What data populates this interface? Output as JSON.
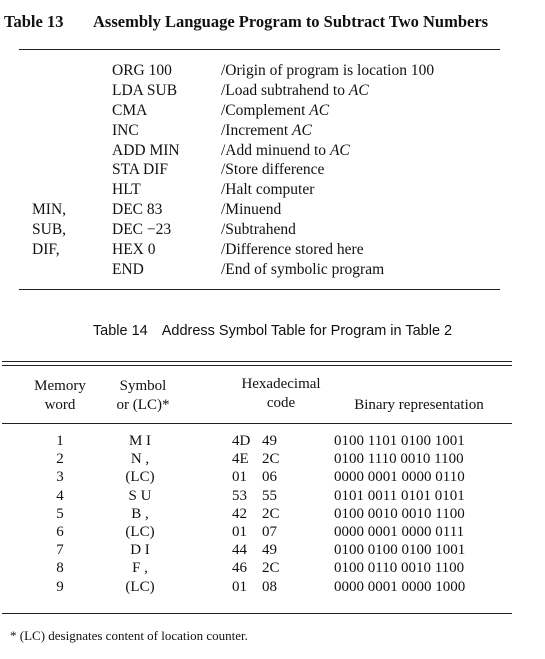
{
  "table13": {
    "number": "Table 13",
    "title": "Assembly Language Program to Subtract Two Numbers",
    "rows": [
      {
        "label": "",
        "instr": "ORG 100",
        "comment": "/Origin of program is location 100"
      },
      {
        "label": "",
        "instr": "LDA SUB",
        "comment": "/Load subtrahend to AC"
      },
      {
        "label": "",
        "instr": "CMA",
        "comment": "/Complement AC"
      },
      {
        "label": "",
        "instr": "INC",
        "comment": "/Increment AC"
      },
      {
        "label": "",
        "instr": "ADD MIN",
        "comment": "/Add minuend to AC"
      },
      {
        "label": "",
        "instr": "STA DIF",
        "comment": "/Store difference"
      },
      {
        "label": "",
        "instr": "HLT",
        "comment": "/Halt computer"
      },
      {
        "label": "MIN,",
        "instr": "DEC 83",
        "comment": "/Minuend"
      },
      {
        "label": "SUB,",
        "instr": "DEC −23",
        "comment": "/Subtrahend"
      },
      {
        "label": "DIF,",
        "instr": "HEX 0",
        "comment": "/Difference stored here"
      },
      {
        "label": "",
        "instr": "END",
        "comment": "/End of symbolic program"
      }
    ]
  },
  "table14": {
    "number": "Table 14",
    "title": "Address Symbol Table for Program in Table 2",
    "headers": {
      "memory_word": "Memory\nword",
      "symbol": "Symbol\nor (LC)*",
      "hex": "Hexadecimal\ncode",
      "binary": "Binary representation"
    },
    "rows": [
      {
        "word": "1",
        "symbol": "M I",
        "hex1": "4D",
        "hex2": "49",
        "binary": "0100 1101 0100 1001"
      },
      {
        "word": "2",
        "symbol": "N ,",
        "hex1": "4E",
        "hex2": "2C",
        "binary": "0100 1110 0010 1100"
      },
      {
        "word": "3",
        "symbol": "(LC)",
        "hex1": "01",
        "hex2": "06",
        "binary": "0000 0001 0000 0110"
      },
      {
        "word": "4",
        "symbol": "S U",
        "hex1": "53",
        "hex2": "55",
        "binary": "0101 0011 0101 0101"
      },
      {
        "word": "5",
        "symbol": "B ,",
        "hex1": "42",
        "hex2": "2C",
        "binary": "0100 0010 0010 1100"
      },
      {
        "word": "6",
        "symbol": "(LC)",
        "hex1": "01",
        "hex2": "07",
        "binary": "0000 0001 0000 0111"
      },
      {
        "word": "7",
        "symbol": "D I",
        "hex1": "44",
        "hex2": "49",
        "binary": "0100 0100 0100 1001"
      },
      {
        "word": "8",
        "symbol": "F ,",
        "hex1": "46",
        "hex2": "2C",
        "binary": "0100 0110 0010 1100"
      },
      {
        "word": "9",
        "symbol": "(LC)",
        "hex1": "01",
        "hex2": "08",
        "binary": "0000 0001 0000 1000"
      }
    ],
    "footnote": "* (LC) designates content of location counter."
  }
}
